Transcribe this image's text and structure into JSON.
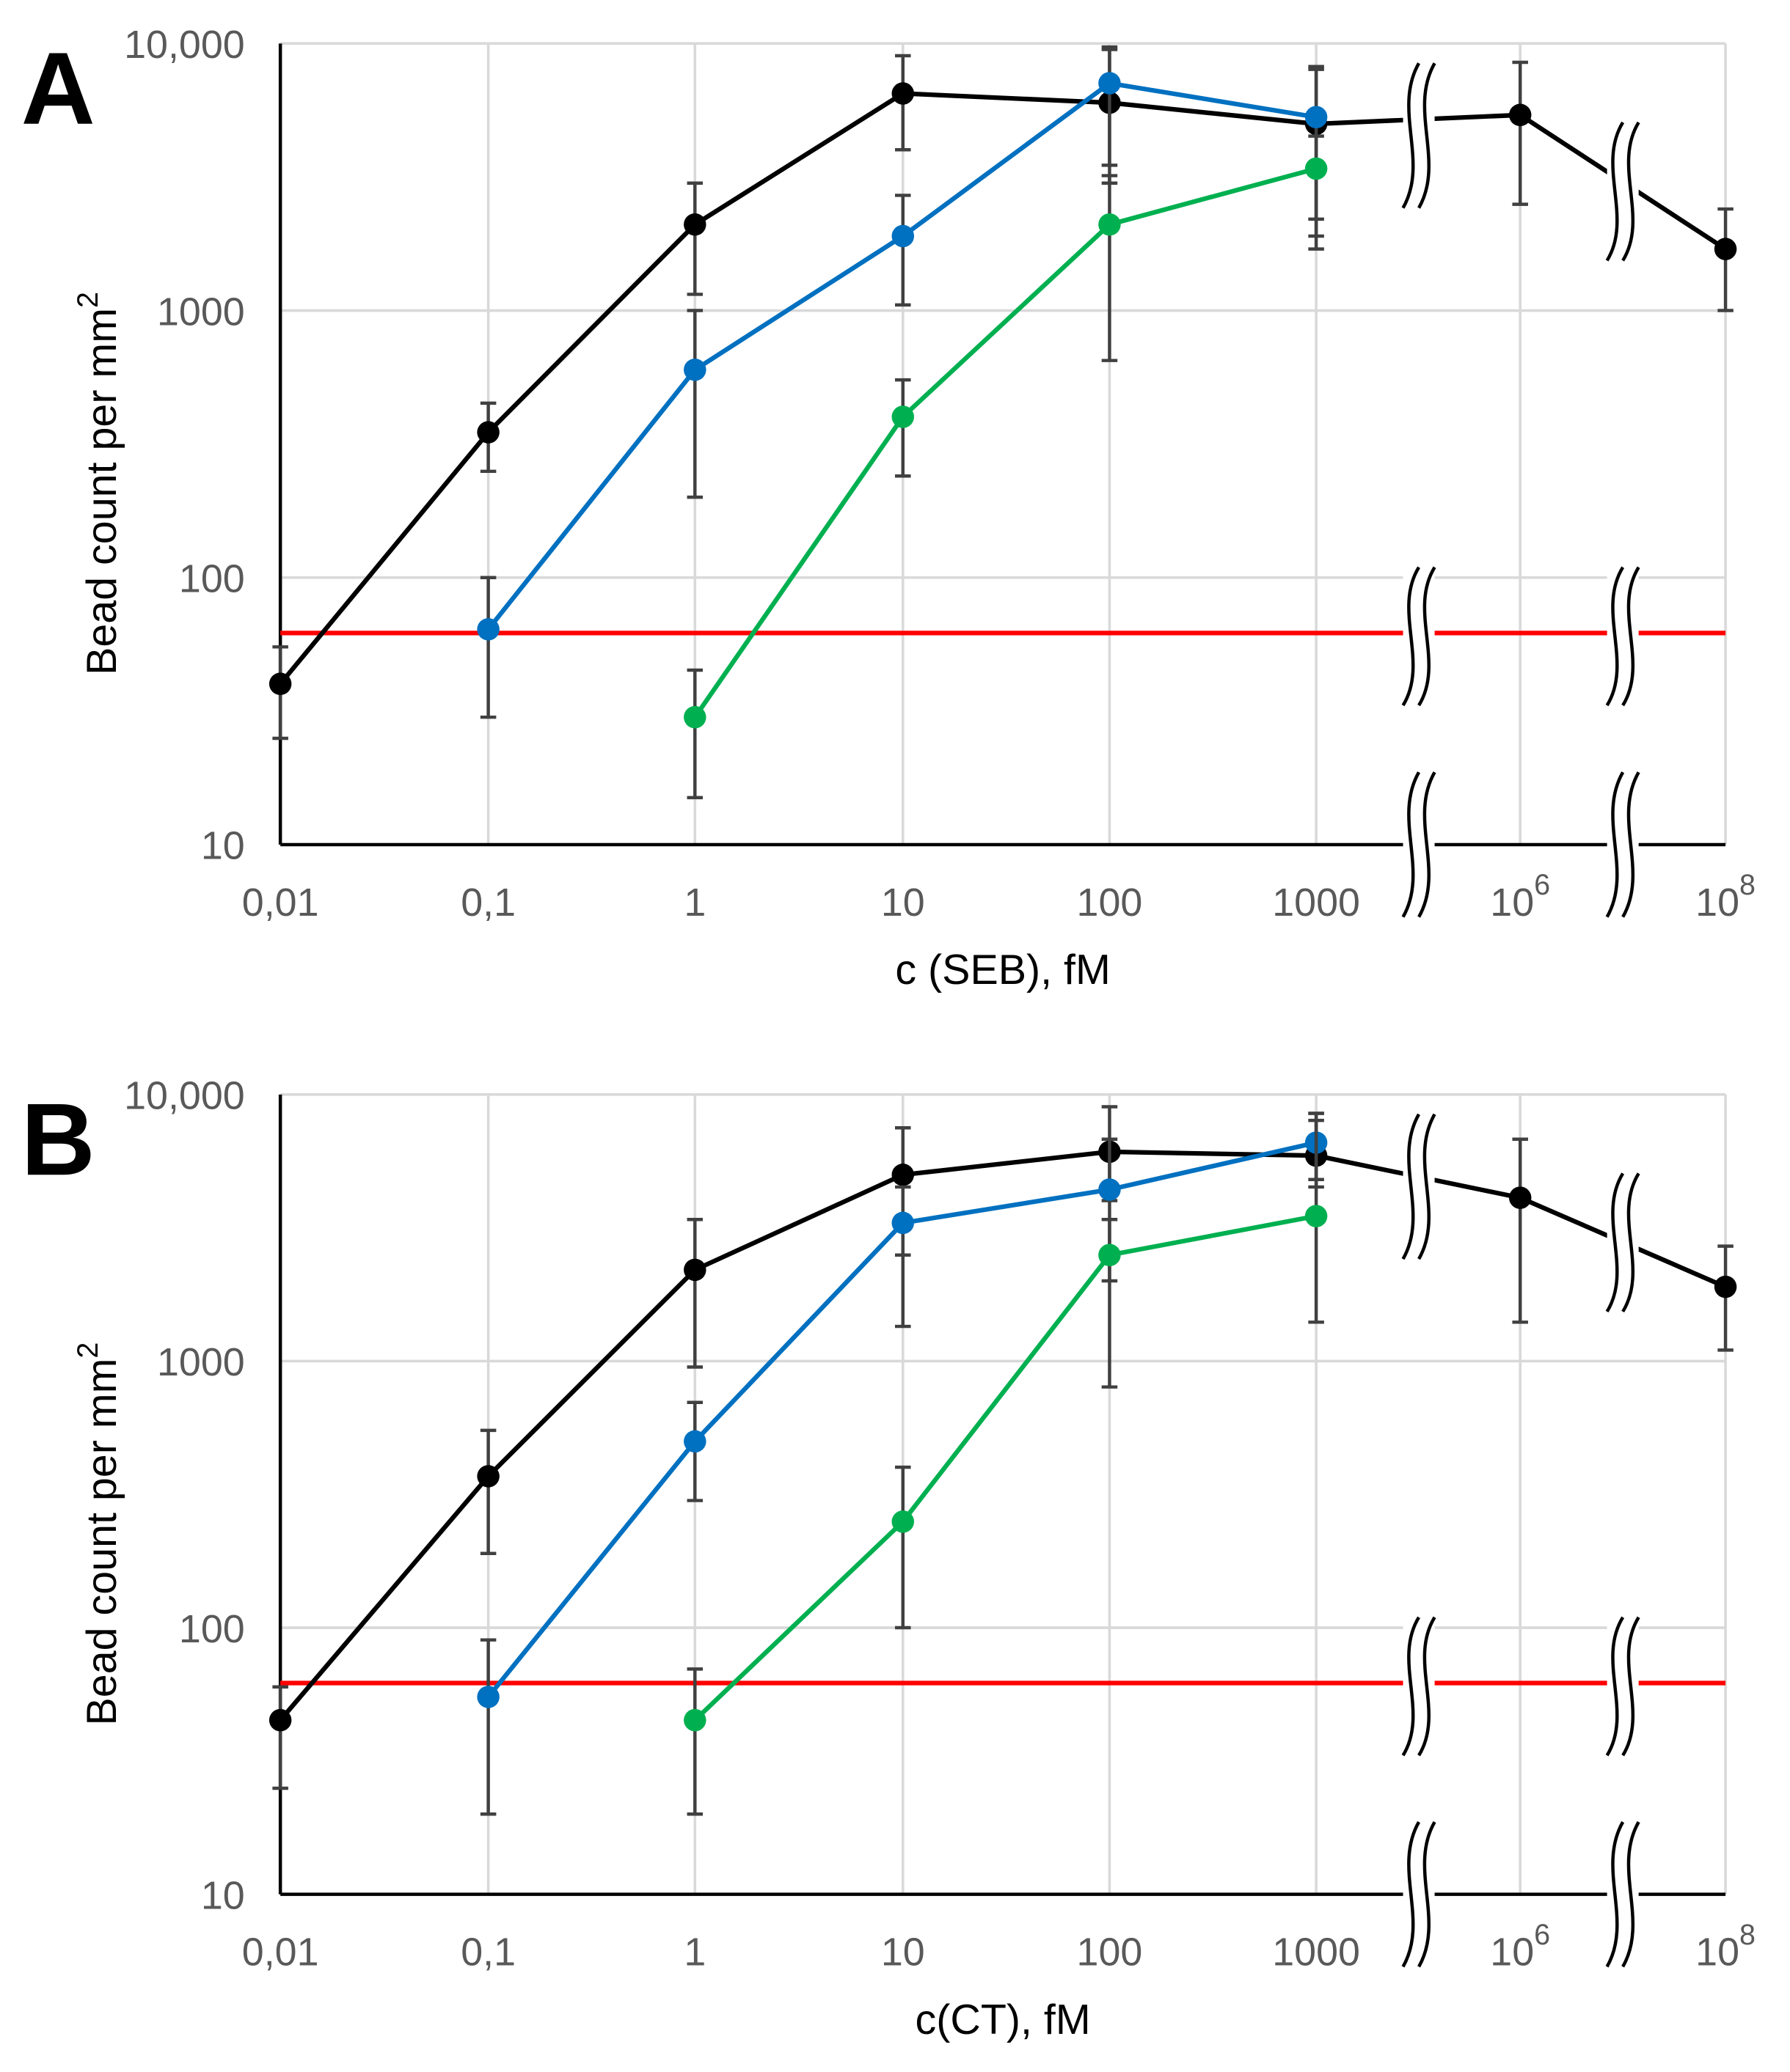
{
  "chart_data": [
    {
      "type": "line",
      "panel_label": "A",
      "xlabel": "c (SEB), fM",
      "ylabel": "Bead count per mm",
      "ylabel_sup": "2",
      "yscale": "log",
      "ylim": [
        10,
        10000
      ],
      "y_tick_labels": [
        "10",
        "100",
        "1000",
        "10,000"
      ],
      "x_categories": [
        0.01,
        0.1,
        1,
        10,
        100,
        1000,
        1000000,
        100000000
      ],
      "x_tick_labels": [
        {
          "base": "0,01",
          "sup": ""
        },
        {
          "base": "0,1",
          "sup": ""
        },
        {
          "base": "1",
          "sup": ""
        },
        {
          "base": "10",
          "sup": ""
        },
        {
          "base": "100",
          "sup": ""
        },
        {
          "base": "1000",
          "sup": ""
        },
        {
          "base": "10",
          "sup": "6"
        },
        {
          "base": "10",
          "sup": "8"
        }
      ],
      "axis_breaks": [
        "between 1000 and 10^6",
        "between 10^6 and 10^8"
      ],
      "grid": true,
      "threshold": {
        "value": 62,
        "color": "#ff0000"
      },
      "series": [
        {
          "name": "black",
          "color": "#000000",
          "x": [
            0.01,
            0.1,
            1,
            10,
            100,
            1000,
            1000000,
            100000000
          ],
          "y": [
            40,
            350,
            2100,
            6500,
            6000,
            5000,
            5400,
            1700
          ],
          "err": [
            [
              25,
              55
            ],
            [
              250,
              450
            ],
            [
              1150,
              3000
            ],
            [
              4000,
              9000
            ],
            [
              3500,
              9500
            ],
            [
              1700,
              8200
            ],
            [
              2500,
              8500
            ],
            [
              1000,
              2400
            ]
          ]
        },
        {
          "name": "blue",
          "color": "#0070c0",
          "x": [
            0.1,
            1,
            10,
            100,
            1000
          ],
          "y": [
            64,
            600,
            1900,
            7100,
            5300
          ],
          "err": [
            [
              30,
              100
            ],
            [
              200,
              1000
            ],
            [
              1050,
              2700
            ],
            [
              3000,
              9700
            ],
            [
              2200,
              8000
            ]
          ]
        },
        {
          "name": "green",
          "color": "#00b050",
          "x": [
            1,
            10,
            100,
            1000
          ],
          "y": [
            30,
            400,
            2100,
            3400
          ],
          "err": [
            [
              15,
              45
            ],
            [
              240,
              550
            ],
            [
              650,
              3200
            ],
            [
              1900,
              4500
            ]
          ]
        }
      ]
    },
    {
      "type": "line",
      "panel_label": "B",
      "xlabel": "c(CT), fM",
      "ylabel": "Bead count per mm",
      "ylabel_sup": "2",
      "yscale": "log",
      "ylim": [
        10,
        10000
      ],
      "y_tick_labels": [
        "10",
        "100",
        "1000",
        "10,000"
      ],
      "x_categories": [
        0.01,
        0.1,
        1,
        10,
        100,
        1000,
        1000000,
        100000000
      ],
      "x_tick_labels": [
        {
          "base": "0,01",
          "sup": ""
        },
        {
          "base": "0,1",
          "sup": ""
        },
        {
          "base": "1",
          "sup": ""
        },
        {
          "base": "10",
          "sup": ""
        },
        {
          "base": "100",
          "sup": ""
        },
        {
          "base": "1000",
          "sup": ""
        },
        {
          "base": "10",
          "sup": "6"
        },
        {
          "base": "10",
          "sup": "8"
        }
      ],
      "axis_breaks": [
        "between 1000 and 10^6",
        "between 10^6 and 10^8"
      ],
      "grid": true,
      "threshold": {
        "value": 62,
        "color": "#ff0000"
      },
      "series": [
        {
          "name": "black",
          "color": "#000000",
          "x": [
            0.01,
            0.1,
            1,
            10,
            100,
            1000,
            1000000,
            100000000
          ],
          "y": [
            45,
            370,
            2200,
            5000,
            6100,
            5900,
            4100,
            1900
          ],
          "err": [
            [
              25,
              60
            ],
            [
              190,
              550
            ],
            [
              950,
              3400
            ],
            [
              2500,
              7500
            ],
            [
              4000,
              9000
            ],
            [
              4500,
              8500
            ],
            [
              1400,
              6800
            ],
            [
              1100,
              2700
            ]
          ]
        },
        {
          "name": "blue",
          "color": "#0070c0",
          "x": [
            0.1,
            1,
            10,
            100,
            1000
          ],
          "y": [
            55,
            500,
            3300,
            4400,
            6600
          ],
          "err": [
            [
              20,
              90
            ],
            [
              300,
              700
            ],
            [
              1350,
              4500
            ],
            [
              2000,
              6800
            ],
            [
              4800,
              8500
            ]
          ]
        },
        {
          "name": "green",
          "color": "#00b050",
          "x": [
            1,
            10,
            100,
            1000
          ],
          "y": [
            45,
            250,
            2500,
            3500
          ],
          "err": [
            [
              20,
              70
            ],
            [
              100,
              400
            ],
            [
              800,
              3400
            ],
            [
              1400,
              8000
            ]
          ]
        }
      ]
    }
  ]
}
